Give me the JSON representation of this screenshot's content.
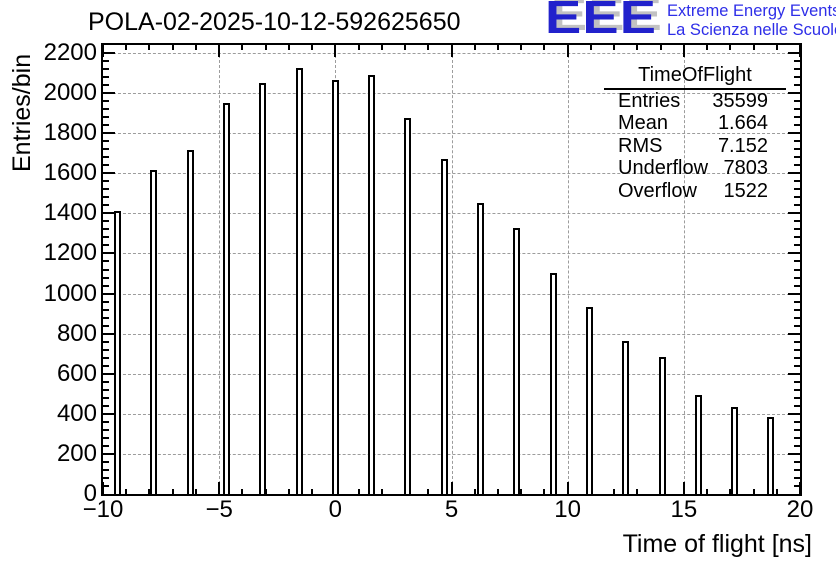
{
  "title": "POLA-02-2025-10-12-592625650",
  "logo": {
    "acronym": "EEE",
    "line1": "Extreme Energy Events",
    "line2": "La Scienza nelle Scuole",
    "acronym_color": "#2222cc",
    "shadow_color": "#c2c2c2",
    "text_color": "#2e2ee8"
  },
  "stats": {
    "title": "TimeOfFlight",
    "rows": [
      {
        "label": "Entries",
        "value": "35599"
      },
      {
        "label": "Mean",
        "value": "1.664"
      },
      {
        "label": "RMS",
        "value": "7.152"
      },
      {
        "label": "Underflow",
        "value": "7803"
      },
      {
        "label": "Overflow",
        "value": "1522"
      }
    ]
  },
  "chart_data": {
    "type": "bar",
    "title": "POLA-02-2025-10-12-592625650",
    "xlabel": "Time of flight [ns]",
    "ylabel": "Entries/bin",
    "xlim": [
      -10,
      20
    ],
    "ylim": [
      0,
      2240
    ],
    "x_major_step": 5,
    "x_minor_step": 1,
    "y_major_step": 200,
    "y_minor_step": 40,
    "grid": true,
    "legend": "none",
    "bar_width_ns": 0.3,
    "bar_fill": "#ffffff",
    "bar_outline": "#000000",
    "x": [
      -9.375,
      -7.8125,
      -6.25,
      -4.6875,
      -3.125,
      -1.5625,
      0,
      1.5625,
      3.125,
      4.6875,
      6.25,
      7.8125,
      9.375,
      10.9375,
      12.5,
      14.0625,
      15.625,
      17.1875,
      18.75
    ],
    "values": [
      1410,
      1615,
      1715,
      1950,
      2050,
      2125,
      2065,
      2090,
      1875,
      1670,
      1450,
      1325,
      1105,
      935,
      765,
      685,
      495,
      435,
      385
    ],
    "x_tick_labels": [
      "−10",
      "−5",
      "0",
      "5",
      "10",
      "15",
      "20"
    ],
    "x_tick_values": [
      -10,
      -5,
      0,
      5,
      10,
      15,
      20
    ],
    "y_tick_labels": [
      "0",
      "200",
      "400",
      "600",
      "800",
      "1000",
      "1200",
      "1400",
      "1600",
      "1800",
      "2000",
      "2200"
    ],
    "y_tick_values": [
      0,
      200,
      400,
      600,
      800,
      1000,
      1200,
      1400,
      1600,
      1800,
      2000,
      2200
    ]
  }
}
